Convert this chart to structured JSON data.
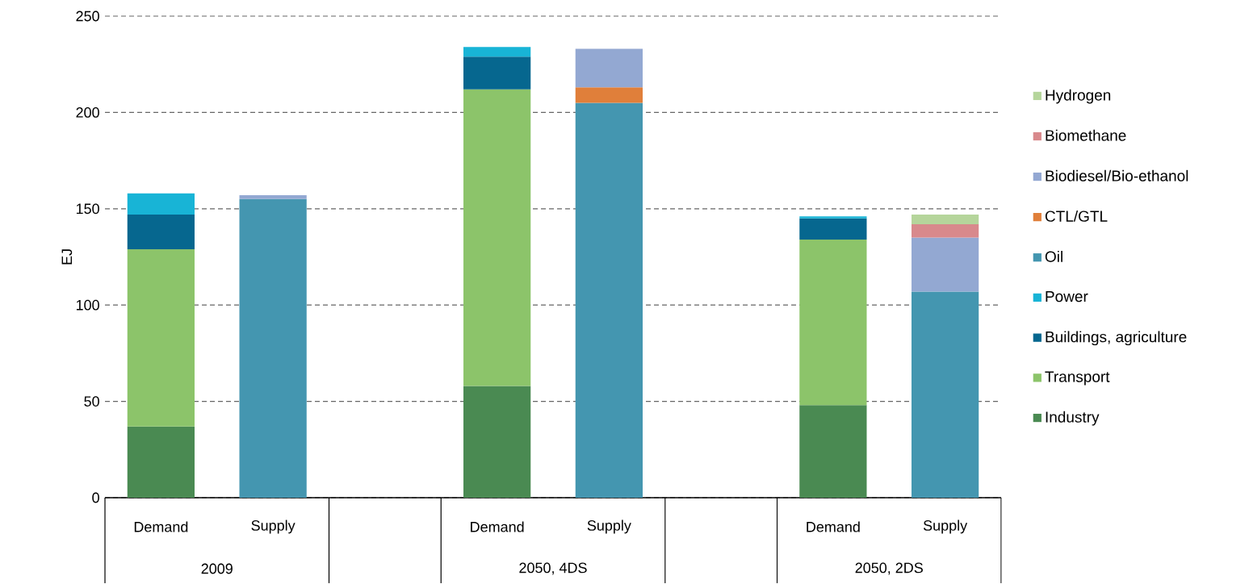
{
  "chart_data": {
    "type": "bar",
    "stacked": true,
    "ylabel": "EJ",
    "categories": [
      "Demand",
      "Supply",
      null,
      "Demand",
      "Supply",
      null,
      "Demand",
      "Supply"
    ],
    "annotations": [
      "2009",
      "2050, 4DS",
      "2050, 2DS"
    ],
    "series": [
      {
        "name": "Industry",
        "color": "#4a8a52",
        "values": [
          37,
          null,
          null,
          58,
          null,
          null,
          48,
          null
        ]
      },
      {
        "name": "Transport",
        "color": "#8cc46a",
        "values": [
          92,
          null,
          null,
          154,
          null,
          null,
          86,
          null
        ]
      },
      {
        "name": "Buildings, agriculture",
        "color": "#06678f",
        "values": [
          18,
          null,
          null,
          17,
          null,
          null,
          11,
          null
        ]
      },
      {
        "name": "Power",
        "color": "#18b4d6",
        "values": [
          11,
          null,
          null,
          5,
          null,
          null,
          1,
          null
        ]
      },
      {
        "name": "Oil",
        "color": "#4496b0",
        "values": [
          null,
          155,
          null,
          null,
          205,
          null,
          null,
          107
        ]
      },
      {
        "name": "CTL/GTL",
        "color": "#e07f3a",
        "values": [
          null,
          null,
          null,
          null,
          8,
          null,
          null,
          null
        ]
      },
      {
        "name": "Biodiesel/Bio-ethanol",
        "color": "#93a8d2",
        "values": [
          null,
          2,
          null,
          null,
          20,
          null,
          null,
          28
        ]
      },
      {
        "name": "Biomethane",
        "color": "#d8898c",
        "values": [
          null,
          null,
          null,
          null,
          null,
          null,
          null,
          7
        ]
      },
      {
        "name": "Hydrogen",
        "color": "#b5d59b",
        "values": [
          null,
          null,
          null,
          null,
          null,
          null,
          null,
          5
        ]
      }
    ],
    "ylim": [
      0,
      250
    ],
    "yticks": [
      0,
      50,
      100,
      150,
      200,
      250
    ],
    "grid": "y",
    "legend": "right"
  }
}
